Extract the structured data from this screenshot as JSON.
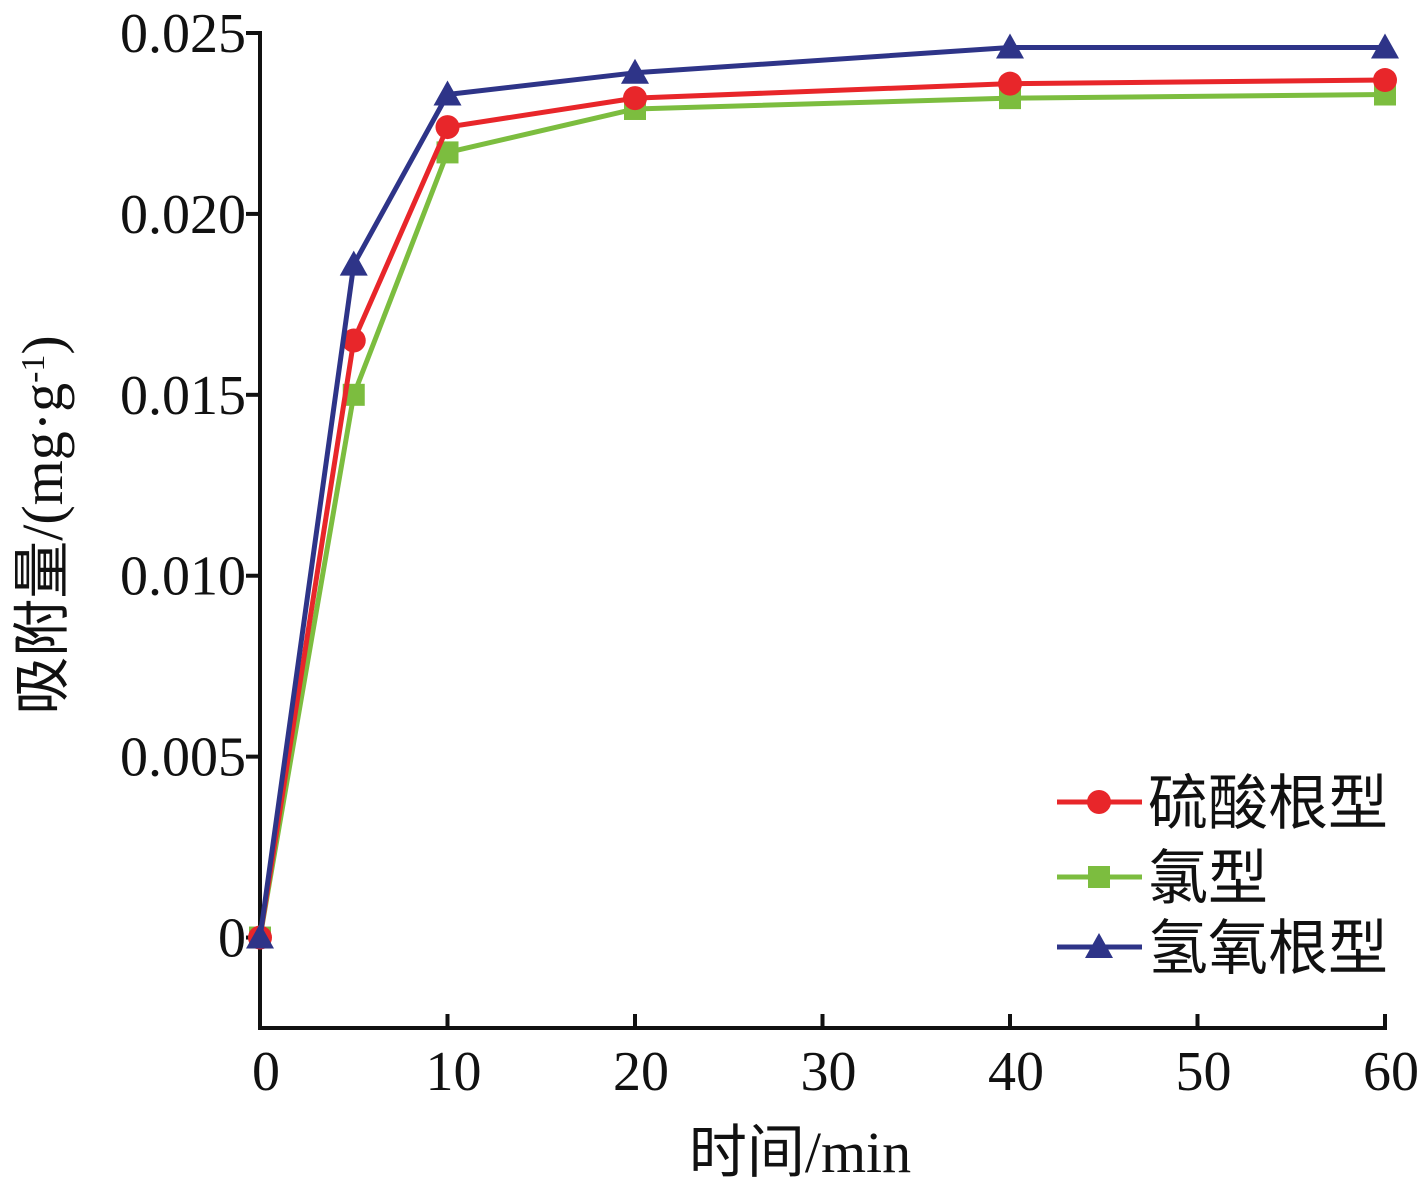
{
  "chart_data": {
    "type": "line",
    "title": "",
    "xlabel": "时间/min",
    "ylabel_main": "吸附量/(mg·g",
    "ylabel_sup": "-1",
    "ylabel_tail": ")",
    "xlim": [
      0,
      60
    ],
    "ylim": [
      -0.0025,
      0.025
    ],
    "xticks": [
      0,
      10,
      20,
      30,
      40,
      50,
      60
    ],
    "xtick_labels": [
      "0",
      "10",
      "20",
      "30",
      "40",
      "50",
      "60"
    ],
    "yticks": [
      0,
      0.005,
      0.01,
      0.015,
      0.02,
      0.025
    ],
    "ytick_labels": [
      "0",
      "0.005",
      "0.010",
      "0.015",
      "0.020",
      "0.025"
    ],
    "grid": false,
    "legend_position": "bottom-right",
    "series": [
      {
        "name": "硫酸根型",
        "color": "#e8262a",
        "marker": "circle",
        "x": [
          0,
          5,
          10,
          20,
          40,
          60
        ],
        "y": [
          0,
          0.0165,
          0.0224,
          0.0232,
          0.0236,
          0.0237
        ]
      },
      {
        "name": "氯型",
        "color": "#7cbd3f",
        "marker": "square",
        "x": [
          0,
          5,
          10,
          20,
          40,
          60
        ],
        "y": [
          0,
          0.015,
          0.0217,
          0.0229,
          0.0232,
          0.0233
        ]
      },
      {
        "name": "氢氧根型",
        "color": "#2e3488",
        "marker": "triangle",
        "x": [
          0,
          5,
          10,
          20,
          40,
          60
        ],
        "y": [
          0,
          0.0186,
          0.0233,
          0.0239,
          0.0246,
          0.0246
        ]
      }
    ]
  }
}
